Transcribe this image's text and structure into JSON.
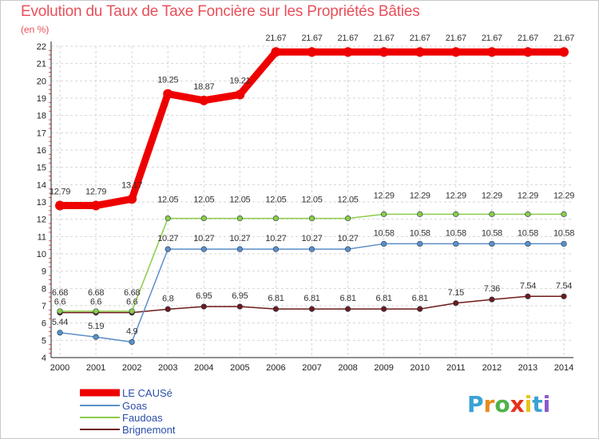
{
  "chart_data": {
    "type": "line",
    "title": "Evolution du Taux de Taxe Foncière sur les Propriétés Bâties",
    "ylabel": "(en %)",
    "xlabel": "",
    "categories": [
      "2000",
      "2001",
      "2002",
      "2003",
      "2004",
      "2005",
      "2006",
      "2007",
      "2008",
      "2009",
      "2010",
      "2011",
      "2012",
      "2013",
      "2014"
    ],
    "ylim": [
      4,
      22
    ],
    "yticks": [
      "4",
      "5",
      "6",
      "7",
      "8",
      "9",
      "10",
      "11",
      "12",
      "13",
      "14",
      "15",
      "16",
      "17",
      "18",
      "19",
      "20",
      "21",
      "22"
    ],
    "series": [
      {
        "name": "LE CAUSé",
        "color": "#ee0000",
        "values": [
          12.79,
          12.79,
          13.17,
          19.25,
          18.87,
          19.21,
          21.67,
          21.67,
          21.67,
          21.67,
          21.67,
          21.67,
          21.67,
          21.67,
          21.67
        ],
        "labels": [
          "12.79",
          "12.79",
          "13.17",
          "19.25",
          "18.87",
          "19.21",
          "21.67",
          "21.67",
          "21.67",
          "21.67",
          "21.67",
          "21.67",
          "21.67",
          "21.67",
          "21.67"
        ]
      },
      {
        "name": "Goas",
        "color": "#5b8fc9",
        "values": [
          5.44,
          5.19,
          4.9,
          10.27,
          10.27,
          10.27,
          10.27,
          10.27,
          10.27,
          10.58,
          10.58,
          10.58,
          10.58,
          10.58,
          10.58
        ],
        "labels": [
          "5.44",
          "5.19",
          "4.9",
          "10.27",
          "10.27",
          "10.27",
          "10.27",
          "10.27",
          "10.27",
          "10.58",
          "10.58",
          "10.58",
          "10.58",
          "10.58",
          "10.58"
        ]
      },
      {
        "name": "Faudoas",
        "color": "#8ccc4a",
        "values": [
          6.68,
          6.68,
          6.68,
          12.05,
          12.05,
          12.05,
          12.05,
          12.05,
          12.05,
          12.29,
          12.29,
          12.29,
          12.29,
          12.29,
          12.29
        ],
        "labels": [
          "6.68",
          "6.68",
          "6.68",
          "12.05",
          "12.05",
          "12.05",
          "12.05",
          "12.05",
          "12.05",
          "12.29",
          "12.29",
          "12.29",
          "12.29",
          "12.29",
          "12.29"
        ]
      },
      {
        "name": "Brignemont",
        "color": "#6e1a1a",
        "values": [
          6.6,
          6.6,
          6.6,
          6.8,
          6.95,
          6.95,
          6.81,
          6.81,
          6.81,
          6.81,
          6.81,
          7.15,
          7.36,
          7.54,
          7.54
        ],
        "labels": [
          "6.6",
          "6.6",
          "6.6",
          "6.8",
          "6.95",
          "6.95",
          "6.81",
          "6.81",
          "6.81",
          "6.81",
          "6.81",
          "7.15",
          "7.36",
          "7.54",
          "7.54"
        ]
      }
    ]
  },
  "logo": {
    "text": "Proxiti"
  }
}
